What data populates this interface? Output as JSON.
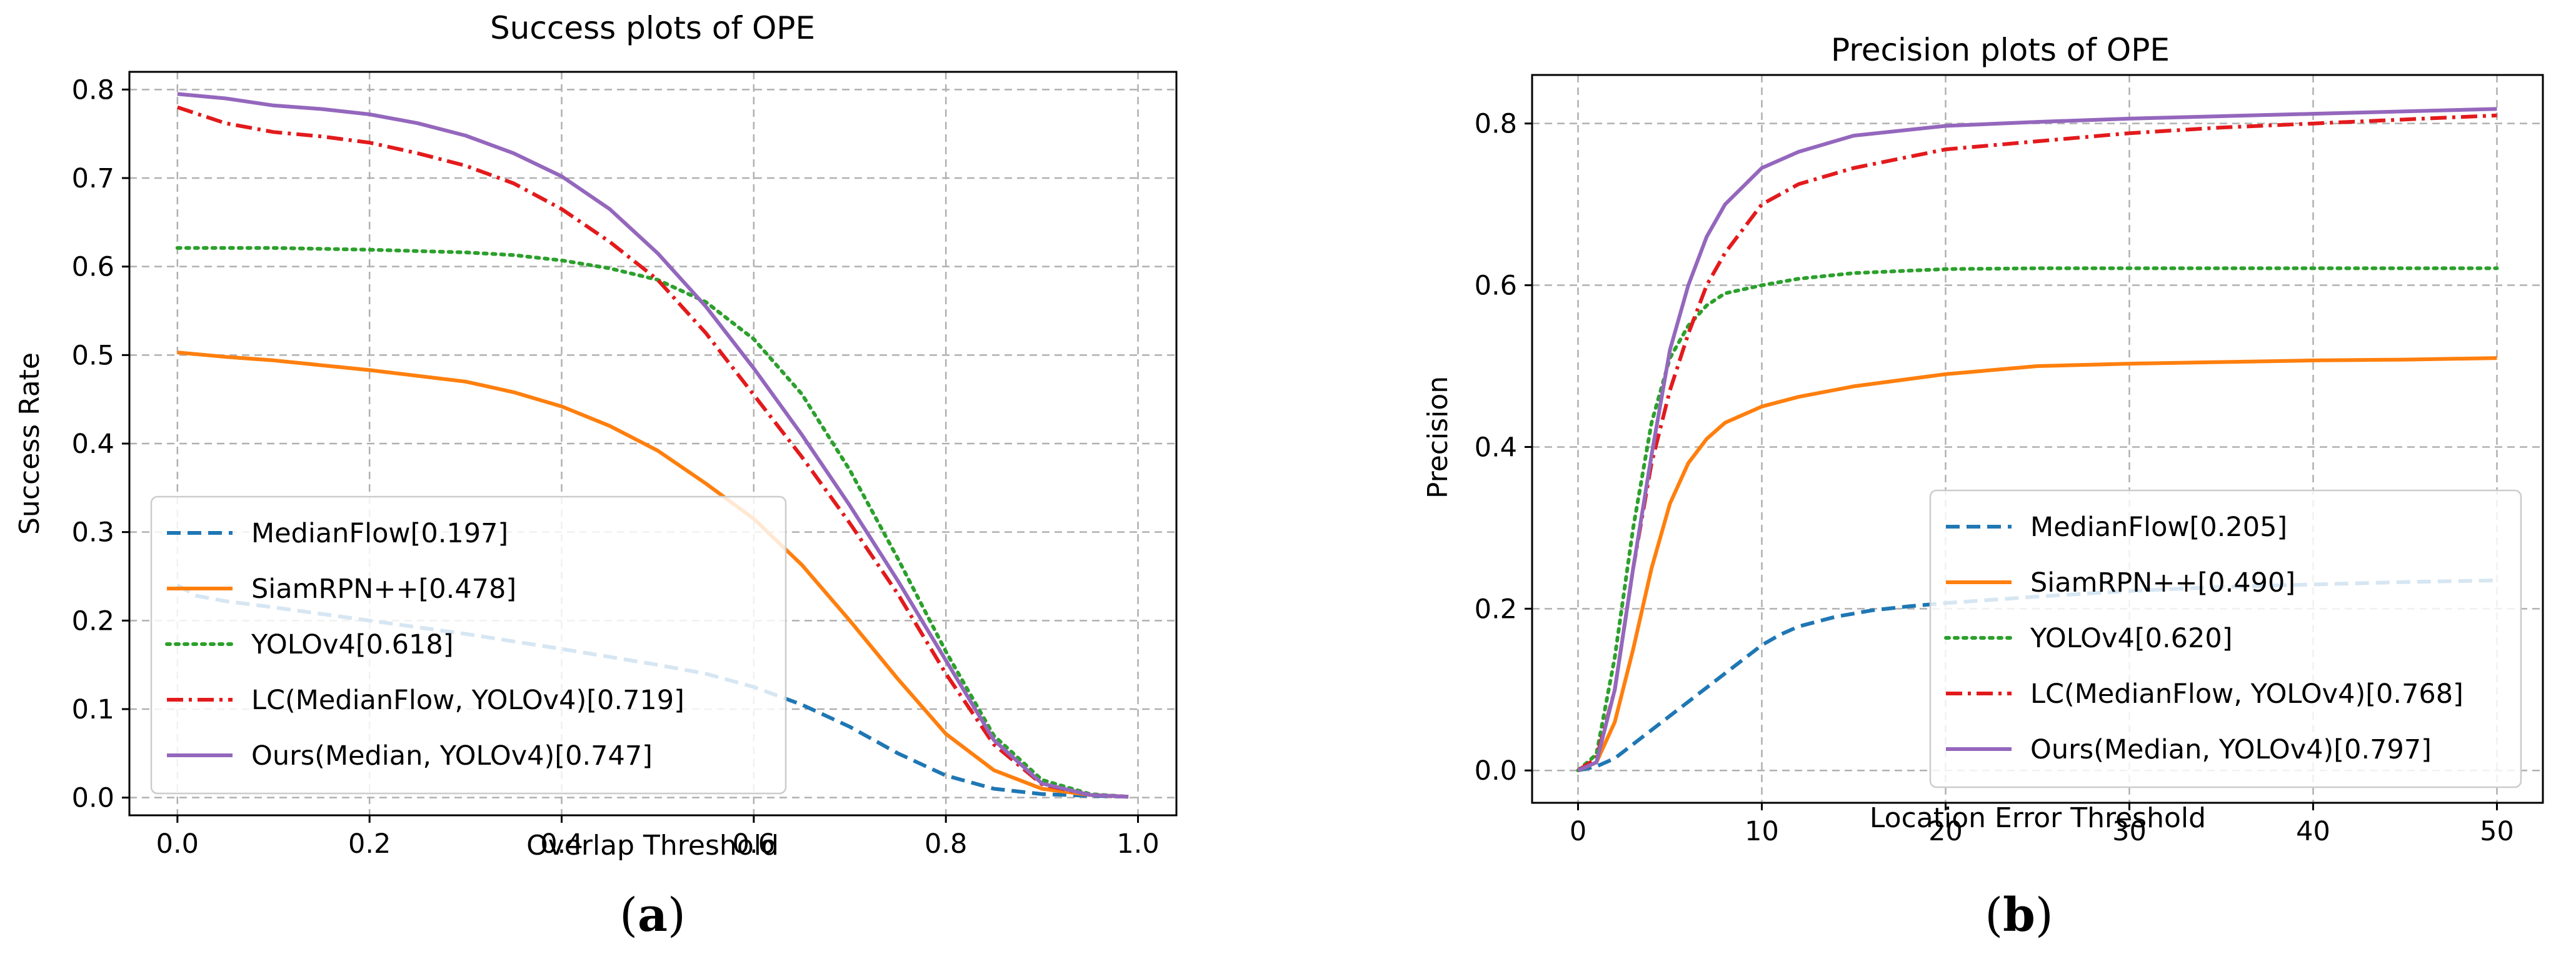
{
  "chart_data": [
    {
      "type": "line",
      "panel_label": "a",
      "title": "Success plots of OPE",
      "xlabel": "Overlap Threshold",
      "ylabel": "Success Rate",
      "xlim": [
        -0.05,
        1.04
      ],
      "ylim": [
        -0.02,
        0.82
      ],
      "xticks": [
        0.0,
        0.2,
        0.4,
        0.6,
        0.8,
        1.0
      ],
      "xtick_labels": [
        "0.0",
        "0.2",
        "0.4",
        "0.6",
        "0.8",
        "1.0"
      ],
      "yticks": [
        0.0,
        0.1,
        0.2,
        0.3,
        0.4,
        0.5,
        0.6,
        0.7,
        0.8
      ],
      "ytick_labels": [
        "0.0",
        "0.1",
        "0.2",
        "0.3",
        "0.4",
        "0.5",
        "0.6",
        "0.7",
        "0.8"
      ],
      "grid": true,
      "legend_position": "lower-left",
      "series": [
        {
          "name": "MedianFlow[0.197]",
          "color": "#1f77b4",
          "style": "dashed",
          "x": [
            0.0,
            0.02,
            0.05,
            0.1,
            0.2,
            0.3,
            0.4,
            0.5,
            0.55,
            0.6,
            0.65,
            0.7,
            0.75,
            0.8,
            0.85,
            0.9,
            0.95,
            0.99
          ],
          "y": [
            0.24,
            0.228,
            0.222,
            0.215,
            0.2,
            0.185,
            0.168,
            0.15,
            0.14,
            0.125,
            0.105,
            0.08,
            0.05,
            0.025,
            0.01,
            0.004,
            0.002,
            0.001
          ]
        },
        {
          "name": "SiamRPN++[0.478]",
          "color": "#ff7f0e",
          "style": "solid",
          "x": [
            0.0,
            0.05,
            0.1,
            0.2,
            0.3,
            0.35,
            0.4,
            0.45,
            0.5,
            0.55,
            0.6,
            0.65,
            0.7,
            0.75,
            0.8,
            0.85,
            0.9,
            0.95,
            0.99
          ],
          "y": [
            0.503,
            0.498,
            0.494,
            0.483,
            0.47,
            0.458,
            0.442,
            0.42,
            0.392,
            0.355,
            0.315,
            0.263,
            0.2,
            0.134,
            0.072,
            0.031,
            0.01,
            0.003,
            0.001
          ]
        },
        {
          "name": "YOLOv4[0.618]",
          "color": "#2ca02c",
          "style": "dotted",
          "x": [
            0.0,
            0.1,
            0.2,
            0.3,
            0.35,
            0.4,
            0.45,
            0.5,
            0.55,
            0.6,
            0.65,
            0.7,
            0.75,
            0.8,
            0.85,
            0.9,
            0.95,
            0.99
          ],
          "y": [
            0.621,
            0.621,
            0.619,
            0.616,
            0.613,
            0.607,
            0.598,
            0.585,
            0.56,
            0.518,
            0.456,
            0.37,
            0.27,
            0.165,
            0.07,
            0.02,
            0.004,
            0.001
          ]
        },
        {
          "name": "LC(MedianFlow, YOLOv4)[0.719]",
          "color": "#e31a1c",
          "style": "dashdot",
          "x": [
            0.0,
            0.05,
            0.1,
            0.15,
            0.2,
            0.25,
            0.3,
            0.35,
            0.4,
            0.45,
            0.5,
            0.55,
            0.6,
            0.65,
            0.7,
            0.75,
            0.8,
            0.85,
            0.9,
            0.95,
            0.99
          ],
          "y": [
            0.78,
            0.762,
            0.752,
            0.747,
            0.74,
            0.728,
            0.714,
            0.694,
            0.665,
            0.628,
            0.585,
            0.525,
            0.455,
            0.385,
            0.31,
            0.23,
            0.14,
            0.06,
            0.015,
            0.003,
            0.001
          ]
        },
        {
          "name": "Ours(Median, YOLOv4)[0.747]",
          "color": "#9467bd",
          "style": "solid",
          "x": [
            0.0,
            0.05,
            0.1,
            0.15,
            0.2,
            0.25,
            0.3,
            0.35,
            0.4,
            0.45,
            0.5,
            0.55,
            0.6,
            0.65,
            0.7,
            0.75,
            0.8,
            0.85,
            0.9,
            0.95,
            0.99
          ],
          "y": [
            0.795,
            0.79,
            0.782,
            0.778,
            0.772,
            0.762,
            0.748,
            0.728,
            0.702,
            0.665,
            0.615,
            0.555,
            0.485,
            0.41,
            0.33,
            0.245,
            0.155,
            0.065,
            0.016,
            0.003,
            0.001
          ]
        }
      ]
    },
    {
      "type": "line",
      "panel_label": "b",
      "title": "Precision plots of OPE",
      "xlabel": "Location Error Threshold",
      "ylabel": "Precision",
      "xlim": [
        -2.5,
        52.5
      ],
      "ylim": [
        -0.04,
        0.86
      ],
      "xticks": [
        0,
        10,
        20,
        30,
        40,
        50
      ],
      "xtick_labels": [
        "0",
        "10",
        "20",
        "30",
        "40",
        "50"
      ],
      "yticks": [
        0.0,
        0.2,
        0.4,
        0.6,
        0.8
      ],
      "ytick_labels": [
        "0.0",
        "0.2",
        "0.4",
        "0.6",
        "0.8"
      ],
      "grid": true,
      "legend_position": "lower-right",
      "series": [
        {
          "name": "MedianFlow[0.205]",
          "color": "#1f77b4",
          "style": "dashed",
          "x": [
            0,
            1,
            2,
            4,
            6,
            8,
            10,
            11,
            12,
            14,
            16,
            18,
            20,
            25,
            30,
            35,
            40,
            45,
            50
          ],
          "y": [
            0.0,
            0.005,
            0.015,
            0.05,
            0.085,
            0.12,
            0.155,
            0.168,
            0.178,
            0.19,
            0.198,
            0.203,
            0.207,
            0.215,
            0.222,
            0.227,
            0.23,
            0.233,
            0.235
          ]
        },
        {
          "name": "SiamRPN++[0.490]",
          "color": "#ff7f0e",
          "style": "solid",
          "x": [
            0,
            1,
            2,
            3,
            4,
            5,
            6,
            7,
            8,
            10,
            12,
            15,
            20,
            25,
            30,
            35,
            40,
            45,
            50
          ],
          "y": [
            0.0,
            0.01,
            0.06,
            0.15,
            0.25,
            0.33,
            0.38,
            0.41,
            0.43,
            0.45,
            0.462,
            0.475,
            0.49,
            0.5,
            0.503,
            0.505,
            0.507,
            0.508,
            0.51
          ]
        },
        {
          "name": "YOLOv4[0.620]",
          "color": "#2ca02c",
          "style": "dotted",
          "x": [
            0,
            1,
            2,
            3,
            4,
            5,
            6,
            7,
            8,
            10,
            12,
            15,
            20,
            25,
            30,
            40,
            50
          ],
          "y": [
            0.0,
            0.02,
            0.14,
            0.3,
            0.43,
            0.51,
            0.55,
            0.575,
            0.59,
            0.6,
            0.608,
            0.615,
            0.62,
            0.621,
            0.621,
            0.621,
            0.621
          ]
        },
        {
          "name": "LC(MedianFlow, YOLOv4)[0.768]",
          "color": "#e31a1c",
          "style": "dashdot",
          "x": [
            0,
            1,
            2,
            3,
            4,
            5,
            6,
            7,
            8,
            10,
            12,
            15,
            20,
            25,
            30,
            35,
            40,
            45,
            50
          ],
          "y": [
            0.0,
            0.015,
            0.1,
            0.25,
            0.38,
            0.47,
            0.54,
            0.6,
            0.64,
            0.7,
            0.725,
            0.745,
            0.768,
            0.778,
            0.788,
            0.795,
            0.8,
            0.805,
            0.81
          ]
        },
        {
          "name": "Ours(Median, YOLOv4)[0.797]",
          "color": "#9467bd",
          "style": "solid",
          "x": [
            0,
            1,
            2,
            3,
            4,
            5,
            6,
            7,
            8,
            10,
            12,
            15,
            20,
            25,
            30,
            35,
            40,
            45,
            50
          ],
          "y": [
            0.0,
            0.01,
            0.1,
            0.25,
            0.39,
            0.52,
            0.6,
            0.66,
            0.7,
            0.745,
            0.765,
            0.785,
            0.797,
            0.802,
            0.806,
            0.809,
            0.812,
            0.815,
            0.818
          ]
        }
      ]
    }
  ]
}
